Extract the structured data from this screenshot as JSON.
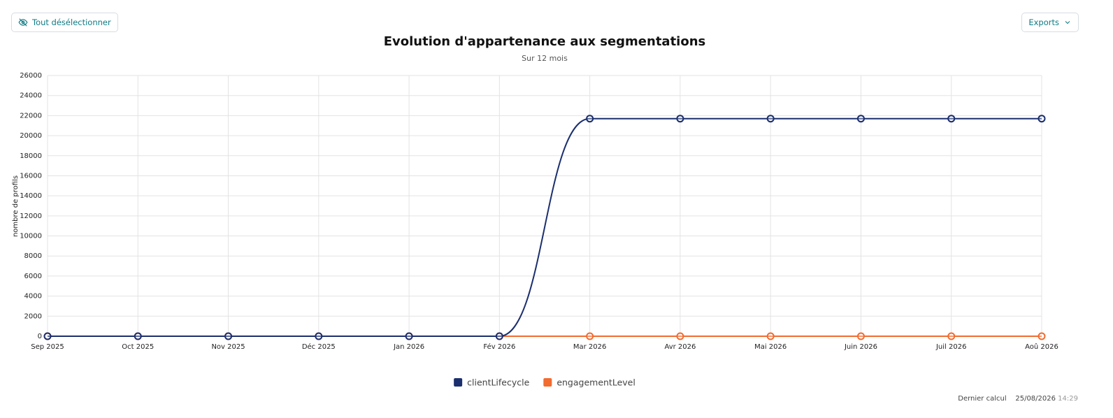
{
  "toolbar": {
    "deselect_button": "Tout désélectionner",
    "exports_button": "Exports"
  },
  "chart_data": {
    "type": "line",
    "title": "Evolution d'appartenance aux segmentations",
    "subtitle": "Sur 12 mois",
    "y_label": "nombre de profils",
    "categories": [
      "Sep 2025",
      "Oct 2025",
      "Nov 2025",
      "Déc 2025",
      "Jan 2026",
      "Fév 2026",
      "Mar 2026",
      "Avr 2026",
      "Mai 2026",
      "Juin 2026",
      "Juil 2026",
      "Aoû 2026"
    ],
    "series": [
      {
        "name": "clientLifecycle",
        "color": "#1b2f6e",
        "values": [
          0,
          0,
          0,
          0,
          0,
          0,
          21700,
          21700,
          21700,
          21700,
          21700,
          21700
        ]
      },
      {
        "name": "engagementLevel",
        "color": "#f26b2f",
        "values": [
          0,
          0,
          0,
          0,
          0,
          0,
          0,
          0,
          0,
          0,
          0,
          0
        ]
      }
    ],
    "ylim": [
      0,
      26000
    ],
    "yticks": [
      0,
      2000,
      4000,
      6000,
      8000,
      10000,
      12000,
      14000,
      16000,
      18000,
      20000,
      22000,
      24000,
      26000
    ],
    "grid": true,
    "legend": "bottom"
  },
  "footer": {
    "label": "Dernier calcul",
    "date": "25/08/2026",
    "time": "14:29"
  }
}
